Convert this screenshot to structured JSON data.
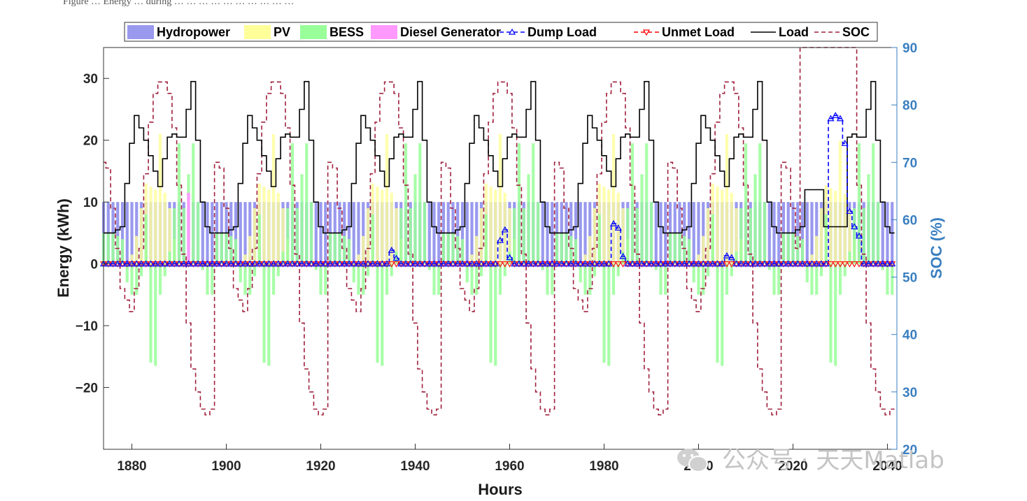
{
  "caption": "Figure … Energy … during … … … … … … … … … …",
  "watermark": "公众号 · 天天Matlab",
  "chart_data": {
    "type": "bar",
    "xlabel": "Hours",
    "ylabel": "Energy (kWh)",
    "ylabel_right": "SOC (%)",
    "xlim": [
      1874,
      2042
    ],
    "ylim": [
      -30,
      35
    ],
    "ylim_right": [
      20,
      90
    ],
    "x_ticks": [
      1880,
      1900,
      1920,
      1940,
      1960,
      1980,
      2000,
      2020,
      2040
    ],
    "y_ticks": [
      -20,
      -10,
      0,
      10,
      20,
      30
    ],
    "y_ticks_right": [
      20,
      30,
      40,
      50,
      60,
      70,
      80,
      90
    ],
    "legend_position": "top",
    "legend": [
      {
        "name": "Hydropower",
        "color": "#9999ee",
        "marker": "patch"
      },
      {
        "name": "PV",
        "color": "#ffff99",
        "marker": "patch"
      },
      {
        "name": "BESS",
        "color": "#99ff99",
        "marker": "patch"
      },
      {
        "name": "Diesel Generator",
        "color": "#ff99ff",
        "marker": "patch"
      },
      {
        "name": "Dump Load",
        "color": "#0000ff",
        "marker": "triangle-up-dashed"
      },
      {
        "name": "Unmet Load",
        "color": "#ff0000",
        "marker": "triangle-down-dashed"
      },
      {
        "name": "Load",
        "color": "#000000",
        "marker": "solid-line"
      },
      {
        "name": "SOC",
        "color": "#a0203c",
        "marker": "dashed-line"
      }
    ],
    "hydropower": {
      "value": 10,
      "note": "constant each hour"
    },
    "pv_daily_profile": [
      0,
      0,
      0,
      0,
      0,
      0,
      1.5,
      4.5,
      9,
      13,
      12.5,
      12,
      21,
      11.5,
      9,
      4,
      0.5,
      0,
      0,
      0,
      0,
      0,
      0,
      0
    ],
    "load_daily_profile": [
      5,
      5,
      5,
      5.5,
      6,
      13,
      19.5,
      24,
      22,
      20,
      17.5,
      15,
      12.5,
      17,
      20.5,
      21,
      20.5,
      20.5,
      25,
      29.5,
      20,
      10,
      6,
      5
    ],
    "bess_daily_profile": [
      5,
      5,
      5,
      4.5,
      4,
      -3,
      -5,
      -5,
      -2,
      8,
      -16,
      -16.5,
      -5,
      -2,
      2,
      9,
      19.5,
      9,
      14.5,
      19.5,
      10,
      -1,
      -5,
      -5
    ],
    "diesel": [
      {
        "hour": 1892,
        "value": 11.5
      }
    ],
    "soc_daily_profile": [
      70,
      69,
      62,
      55,
      48,
      46,
      44,
      48,
      55,
      68,
      77,
      82,
      84,
      84,
      82,
      76,
      66,
      54,
      42,
      34,
      30,
      27,
      26,
      27
    ],
    "dump_load": [
      {
        "hour": 1935,
        "value": 2.2
      },
      {
        "hour": 1936,
        "value": 0.9
      },
      {
        "hour": 1958,
        "value": 3.8
      },
      {
        "hour": 1959,
        "value": 5.5
      },
      {
        "hour": 1960,
        "value": 1.0
      },
      {
        "hour": 1982,
        "value": 6.5
      },
      {
        "hour": 1983,
        "value": 5.8
      },
      {
        "hour": 1984,
        "value": 1.2
      },
      {
        "hour": 2006,
        "value": 1.3
      },
      {
        "hour": 2007,
        "value": 1.0
      },
      {
        "hour": 2028,
        "value": 23.5
      },
      {
        "hour": 2029,
        "value": 24.0
      },
      {
        "hour": 2030,
        "value": 23.5
      },
      {
        "hour": 2031,
        "value": 19.5
      },
      {
        "hour": 2032,
        "value": 8.5
      },
      {
        "hour": 2033,
        "value": 6.0
      },
      {
        "hour": 2034,
        "value": 4.5
      }
    ],
    "unmet_load": {
      "value": 0,
      "note": "zero every hour"
    }
  }
}
